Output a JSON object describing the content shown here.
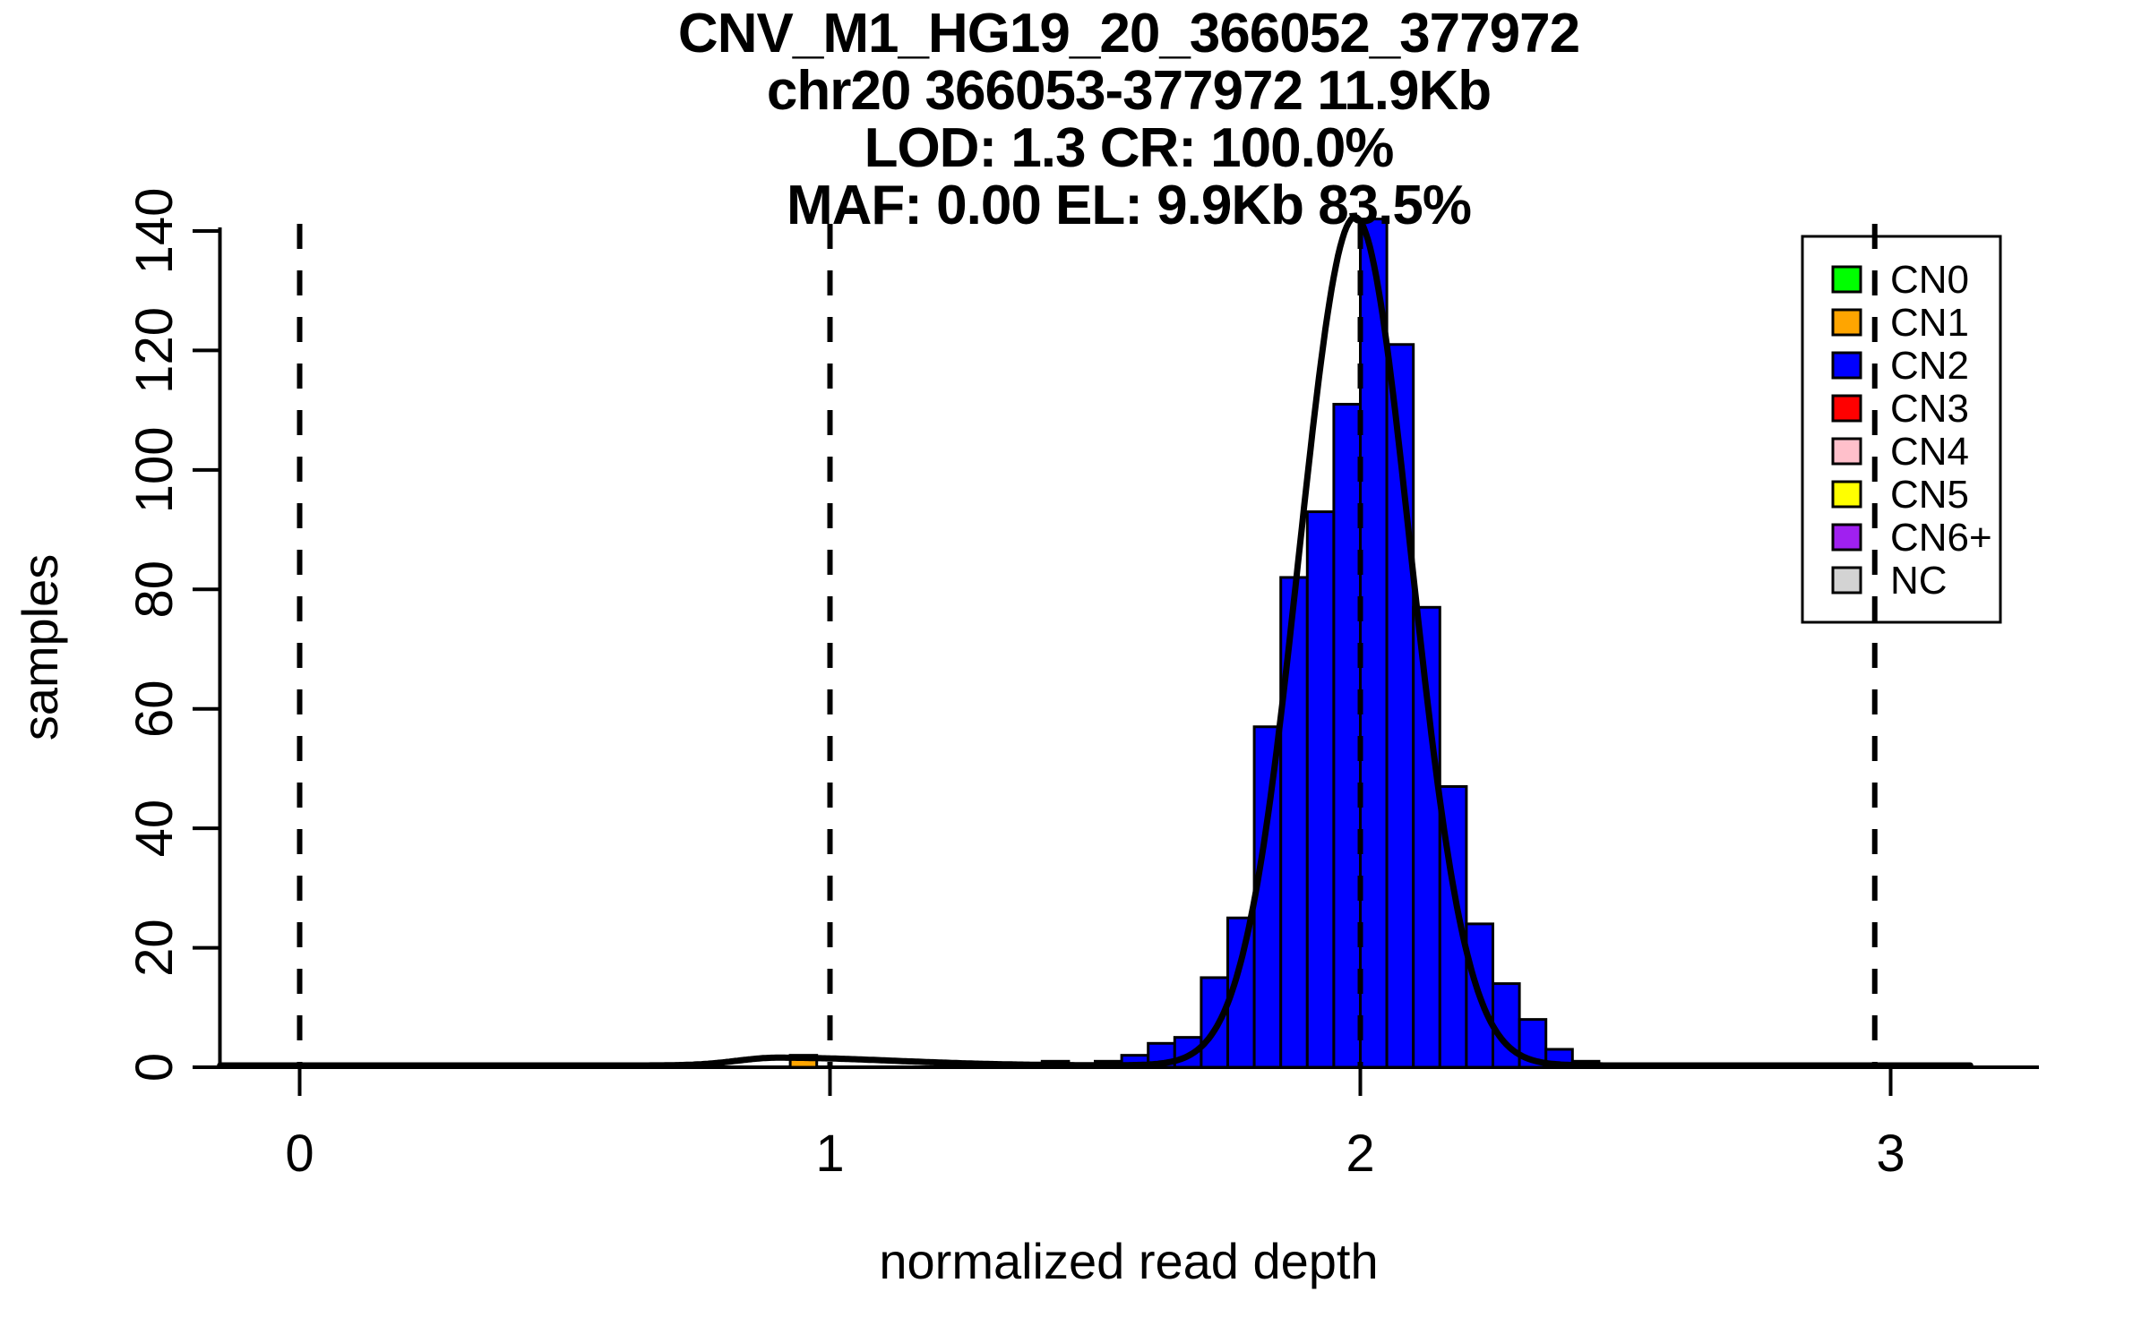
{
  "chart_data": {
    "type": "bar",
    "subtype": "histogram-with-density-fit",
    "title_lines": [
      "CNV_M1_HG19_20_366052_377972",
      "chr20 366053-377972 11.9Kb",
      "LOD: 1.3 CR: 100.0%",
      "MAF: 0.00 EL: 9.9Kb 83.5%"
    ],
    "xlabel": "normalized read depth",
    "ylabel": "samples",
    "x_ticks": [
      0,
      1,
      2,
      3
    ],
    "y_ticks": [
      0,
      20,
      40,
      60,
      80,
      100,
      120,
      140
    ],
    "xlim": [
      -0.18,
      3.28
    ],
    "ylim": [
      0,
      140
    ],
    "grid": false,
    "bin_width": 0.05,
    "bars": [
      {
        "x": 0.925,
        "count": 2,
        "cn": "CN1"
      },
      {
        "x": 1.4,
        "count": 1,
        "cn": "CN2"
      },
      {
        "x": 1.5,
        "count": 1,
        "cn": "CN2"
      },
      {
        "x": 1.55,
        "count": 2,
        "cn": "CN2"
      },
      {
        "x": 1.6,
        "count": 4,
        "cn": "CN2"
      },
      {
        "x": 1.65,
        "count": 5,
        "cn": "CN2"
      },
      {
        "x": 1.7,
        "count": 15,
        "cn": "CN2"
      },
      {
        "x": 1.75,
        "count": 25,
        "cn": "CN2"
      },
      {
        "x": 1.8,
        "count": 57,
        "cn": "CN2"
      },
      {
        "x": 1.85,
        "count": 82,
        "cn": "CN2"
      },
      {
        "x": 1.9,
        "count": 93,
        "cn": "CN2"
      },
      {
        "x": 1.95,
        "count": 111,
        "cn": "CN2"
      },
      {
        "x": 2.0,
        "count": 142,
        "cn": "CN2"
      },
      {
        "x": 2.05,
        "count": 121,
        "cn": "CN2"
      },
      {
        "x": 2.1,
        "count": 77,
        "cn": "CN2"
      },
      {
        "x": 2.15,
        "count": 47,
        "cn": "CN2"
      },
      {
        "x": 2.2,
        "count": 24,
        "cn": "CN2"
      },
      {
        "x": 2.25,
        "count": 14,
        "cn": "CN2"
      },
      {
        "x": 2.3,
        "count": 8,
        "cn": "CN2"
      },
      {
        "x": 2.35,
        "count": 3,
        "cn": "CN2"
      },
      {
        "x": 2.4,
        "count": 1,
        "cn": "CN2"
      }
    ],
    "dashed_lines_x": [
      0,
      1,
      2,
      2.97
    ],
    "fit_curve": {
      "main_peak": {
        "mean": 1.99,
        "sd": 0.105,
        "amplitude": 142
      },
      "minor_bump": {
        "mean": 0.9,
        "sd_left": 0.075,
        "sd_right": 0.22,
        "amplitude": 1.3
      },
      "baseline": 0.3,
      "range": [
        -0.15,
        3.15
      ]
    },
    "legend": {
      "items": [
        {
          "label": "CN0",
          "color": "#00FF00"
        },
        {
          "label": "CN1",
          "color": "#FFA500"
        },
        {
          "label": "CN2",
          "color": "#0000FF"
        },
        {
          "label": "CN3",
          "color": "#FF0000"
        },
        {
          "label": "CN4",
          "color": "#FFC0CB"
        },
        {
          "label": "CN5",
          "color": "#FFFF00"
        },
        {
          "label": "CN6+",
          "color": "#A020F0"
        },
        {
          "label": "NC",
          "color": "#D3D3D3"
        }
      ]
    },
    "colors": {
      "background": "#ffffff",
      "axis": "#000000",
      "curve": "#000000",
      "bar_cn1": "#FFA500",
      "bar_cn2": "#0000FF"
    }
  }
}
